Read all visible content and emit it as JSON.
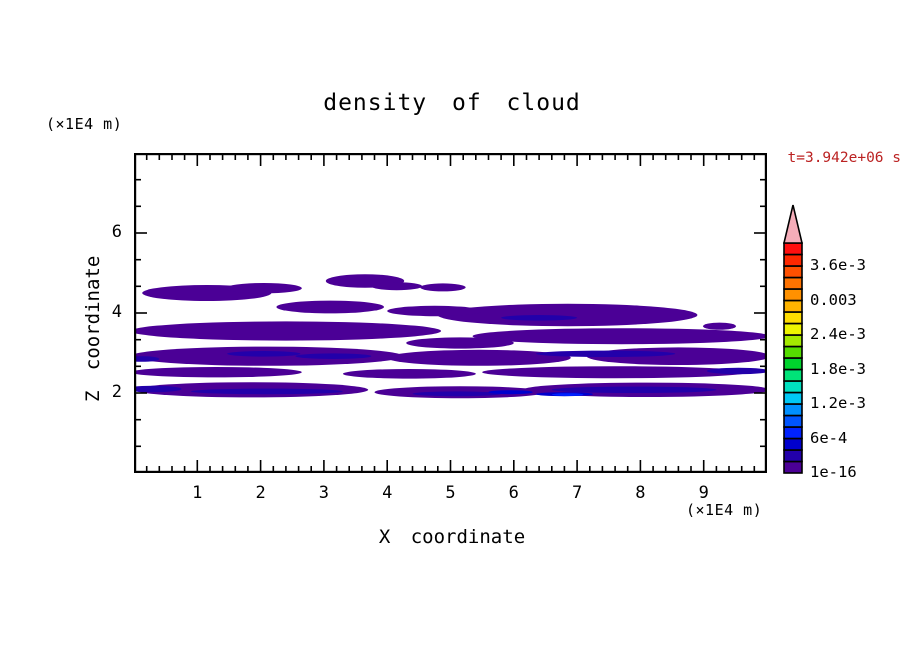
{
  "title": "density of cloud",
  "time_label": "t=3.942e+06 s",
  "axes": {
    "x": {
      "label": "X coordinate",
      "unit": "(×1E4 m)",
      "range": [
        0,
        10
      ],
      "major_ticks": [
        1,
        2,
        3,
        4,
        5,
        6,
        7,
        8,
        9
      ],
      "minor_step": 0.2
    },
    "z": {
      "label": "Z coordinate",
      "unit": "(×1E4 m)",
      "range": [
        0,
        8
      ],
      "major_ticks": [
        2,
        4,
        6
      ],
      "minor_step": 0.6667
    }
  },
  "colorbar": {
    "tick_labels": [
      "1e-16",
      "6e-4",
      "1.2e-3",
      "1.8e-3",
      "2.4e-3",
      "0.003",
      "3.6e-3"
    ],
    "label_boundaries": [
      0,
      3,
      6,
      9,
      12,
      15,
      18
    ],
    "cell_colors_bottom_to_top": [
      "#4b0096",
      "#2200aa",
      "#0000cd",
      "#0022ff",
      "#0055ff",
      "#0090ff",
      "#00c8f5",
      "#00e0c0",
      "#00e378",
      "#00d42d",
      "#55dd00",
      "#a5ea00",
      "#eef500",
      "#ffdd00",
      "#ffb400",
      "#ff9100",
      "#ff7300",
      "#ff5000",
      "#ff2800",
      "#ff0f0f"
    ],
    "overflow_arrow_color": "#f5adb9"
  },
  "colors": {
    "axis": "#000000",
    "time_label": "#bb2222",
    "background": "#ffffff"
  },
  "chart_data": {
    "type": "filled_contour",
    "title": "density of cloud",
    "time": "t=3.942e+06 s",
    "xlabel": "X coordinate",
    "x_unit": "(×1E4 m)",
    "ylabel": "Z coordinate",
    "y_unit": "(×1E4 m)",
    "x_range": [
      0,
      10
    ],
    "z_range": [
      0,
      8
    ],
    "grid": false,
    "legend_position": "right-colorbar",
    "contour_levels": [
      "1e-16",
      "6e-4",
      "1.2e-3",
      "1.8e-3",
      "2.4e-3",
      "0.003",
      "3.6e-3"
    ],
    "cloud_regions_note": "elliptical cloud streaks in data coords (x,z in 1E4 m); level = colorbar cell index",
    "cloud_regions": [
      {
        "x": 1.15,
        "z": 4.5,
        "rx": 1.02,
        "rz": 0.2,
        "level": 0
      },
      {
        "x": 2.05,
        "z": 4.62,
        "rx": 0.6,
        "rz": 0.13,
        "level": 0
      },
      {
        "x": 3.65,
        "z": 4.8,
        "rx": 0.62,
        "rz": 0.17,
        "level": 0
      },
      {
        "x": 4.15,
        "z": 4.67,
        "rx": 0.4,
        "rz": 0.1,
        "level": 0
      },
      {
        "x": 4.88,
        "z": 4.64,
        "rx": 0.36,
        "rz": 0.1,
        "level": 0
      },
      {
        "x": 3.1,
        "z": 4.15,
        "rx": 0.85,
        "rz": 0.16,
        "level": 0
      },
      {
        "x": 6.85,
        "z": 3.95,
        "rx": 2.05,
        "rz": 0.28,
        "level": 0
      },
      {
        "x": 4.75,
        "z": 4.05,
        "rx": 0.75,
        "rz": 0.13,
        "level": 0
      },
      {
        "x": 9.25,
        "z": 3.67,
        "rx": 0.26,
        "rz": 0.09,
        "level": 0
      },
      {
        "x": 2.4,
        "z": 3.55,
        "rx": 2.45,
        "rz": 0.24,
        "level": 0
      },
      {
        "x": 7.7,
        "z": 3.42,
        "rx": 2.35,
        "rz": 0.2,
        "level": 0
      },
      {
        "x": 5.15,
        "z": 3.25,
        "rx": 0.85,
        "rz": 0.14,
        "level": 0
      },
      {
        "x": 2.1,
        "z": 2.92,
        "rx": 2.15,
        "rz": 0.24,
        "level": 0
      },
      {
        "x": 5.45,
        "z": 2.88,
        "rx": 1.45,
        "rz": 0.2,
        "level": 0
      },
      {
        "x": 8.6,
        "z": 2.92,
        "rx": 1.45,
        "rz": 0.22,
        "level": 0
      },
      {
        "x": 1.3,
        "z": 2.52,
        "rx": 1.35,
        "rz": 0.13,
        "level": 0
      },
      {
        "x": 4.35,
        "z": 2.48,
        "rx": 1.05,
        "rz": 0.12,
        "level": 0
      },
      {
        "x": 7.6,
        "z": 2.52,
        "rx": 2.1,
        "rz": 0.15,
        "level": 0
      },
      {
        "x": 1.85,
        "z": 2.08,
        "rx": 1.85,
        "rz": 0.19,
        "level": 0
      },
      {
        "x": 5.15,
        "z": 2.02,
        "rx": 1.35,
        "rz": 0.15,
        "level": 0
      },
      {
        "x": 8.1,
        "z": 2.08,
        "rx": 1.95,
        "rz": 0.18,
        "level": 0
      },
      {
        "x": 2.05,
        "z": 2.98,
        "rx": 0.58,
        "rz": 0.07,
        "level": 1
      },
      {
        "x": 3.15,
        "z": 2.92,
        "rx": 0.6,
        "rz": 0.07,
        "level": 1
      },
      {
        "x": 7.45,
        "z": 2.98,
        "rx": 1.1,
        "rz": 0.08,
        "level": 1
      },
      {
        "x": 2.1,
        "z": 2.04,
        "rx": 1.2,
        "rz": 0.07,
        "level": 1
      },
      {
        "x": 5.1,
        "z": 1.98,
        "rx": 0.7,
        "rz": 0.06,
        "level": 1
      },
      {
        "x": 7.9,
        "z": 2.08,
        "rx": 1.3,
        "rz": 0.08,
        "level": 1
      },
      {
        "x": 6.4,
        "z": 3.88,
        "rx": 0.6,
        "rz": 0.07,
        "level": 1
      },
      {
        "x": 9.55,
        "z": 2.55,
        "rx": 0.5,
        "rz": 0.08,
        "level": 1
      },
      {
        "x": 0.3,
        "z": 2.1,
        "rx": 0.45,
        "rz": 0.08,
        "level": 1
      },
      {
        "x": 0.12,
        "z": 2.85,
        "rx": 0.28,
        "rz": 0.07,
        "level": 1
      },
      {
        "x": 6.8,
        "z": 1.97,
        "rx": 0.45,
        "rz": 0.05,
        "level": 2
      },
      {
        "x": 5.95,
        "z": 2.02,
        "rx": 0.35,
        "rz": 0.05,
        "level": 2
      },
      {
        "x": 6.85,
        "z": 1.96,
        "rx": 0.25,
        "rz": 0.035,
        "level": 3
      }
    ]
  }
}
